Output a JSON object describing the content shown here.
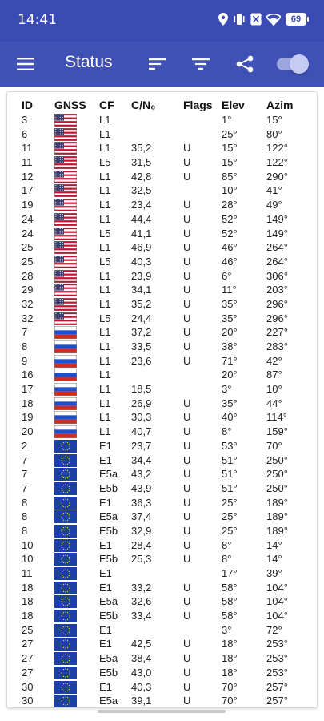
{
  "status_bar": {
    "time": "14:41",
    "battery": "69"
  },
  "app_bar": {
    "title": "Status",
    "toggle_on": true
  },
  "table": {
    "headers": {
      "id": "ID",
      "gnss": "GNSS",
      "cf": "CF",
      "cn0": "C/N₀",
      "flags": "Flags",
      "elev": "Elev",
      "azim": "Azim"
    },
    "rows": [
      {
        "id": "3",
        "gnss": "us",
        "cf": "L1",
        "cn0": "",
        "flags": "",
        "elev": "1°",
        "azim": "15°"
      },
      {
        "id": "6",
        "gnss": "us",
        "cf": "L1",
        "cn0": "",
        "flags": "",
        "elev": "25°",
        "azim": "80°"
      },
      {
        "id": "11",
        "gnss": "us",
        "cf": "L1",
        "cn0": "35,2",
        "flags": "U",
        "elev": "15°",
        "azim": "122°"
      },
      {
        "id": "11",
        "gnss": "us",
        "cf": "L5",
        "cn0": "31,5",
        "flags": "U",
        "elev": "15°",
        "azim": "122°"
      },
      {
        "id": "12",
        "gnss": "us",
        "cf": "L1",
        "cn0": "42,8",
        "flags": "U",
        "elev": "85°",
        "azim": "290°"
      },
      {
        "id": "17",
        "gnss": "us",
        "cf": "L1",
        "cn0": "32,5",
        "flags": "",
        "elev": "10°",
        "azim": "41°"
      },
      {
        "id": "19",
        "gnss": "us",
        "cf": "L1",
        "cn0": "23,4",
        "flags": "U",
        "elev": "28°",
        "azim": "49°"
      },
      {
        "id": "24",
        "gnss": "us",
        "cf": "L1",
        "cn0": "44,4",
        "flags": "U",
        "elev": "52°",
        "azim": "149°"
      },
      {
        "id": "24",
        "gnss": "us",
        "cf": "L5",
        "cn0": "41,1",
        "flags": "U",
        "elev": "52°",
        "azim": "149°"
      },
      {
        "id": "25",
        "gnss": "us",
        "cf": "L1",
        "cn0": "46,9",
        "flags": "U",
        "elev": "46°",
        "azim": "264°"
      },
      {
        "id": "25",
        "gnss": "us",
        "cf": "L5",
        "cn0": "40,3",
        "flags": "U",
        "elev": "46°",
        "azim": "264°"
      },
      {
        "id": "28",
        "gnss": "us",
        "cf": "L1",
        "cn0": "23,9",
        "flags": "U",
        "elev": "6°",
        "azim": "306°"
      },
      {
        "id": "29",
        "gnss": "us",
        "cf": "L1",
        "cn0": "34,1",
        "flags": "U",
        "elev": "11°",
        "azim": "203°"
      },
      {
        "id": "32",
        "gnss": "us",
        "cf": "L1",
        "cn0": "35,2",
        "flags": "U",
        "elev": "35°",
        "azim": "296°"
      },
      {
        "id": "32",
        "gnss": "us",
        "cf": "L5",
        "cn0": "24,4",
        "flags": "U",
        "elev": "35°",
        "azim": "296°"
      },
      {
        "id": "7",
        "gnss": "ru",
        "cf": "L1",
        "cn0": "37,2",
        "flags": "U",
        "elev": "20°",
        "azim": "227°"
      },
      {
        "id": "8",
        "gnss": "ru",
        "cf": "L1",
        "cn0": "33,5",
        "flags": "U",
        "elev": "38°",
        "azim": "283°"
      },
      {
        "id": "9",
        "gnss": "ru",
        "cf": "L1",
        "cn0": "23,6",
        "flags": "U",
        "elev": "71°",
        "azim": "42°"
      },
      {
        "id": "16",
        "gnss": "ru",
        "cf": "L1",
        "cn0": "",
        "flags": "",
        "elev": "20°",
        "azim": "87°"
      },
      {
        "id": "17",
        "gnss": "ru",
        "cf": "L1",
        "cn0": "18,5",
        "flags": "",
        "elev": "3°",
        "azim": "10°"
      },
      {
        "id": "18",
        "gnss": "ru",
        "cf": "L1",
        "cn0": "26,9",
        "flags": "U",
        "elev": "35°",
        "azim": "44°"
      },
      {
        "id": "19",
        "gnss": "ru",
        "cf": "L1",
        "cn0": "30,3",
        "flags": "U",
        "elev": "40°",
        "azim": "114°"
      },
      {
        "id": "20",
        "gnss": "ru",
        "cf": "L1",
        "cn0": "40,7",
        "flags": "U",
        "elev": "8°",
        "azim": "159°"
      },
      {
        "id": "2",
        "gnss": "eu",
        "cf": "E1",
        "cn0": "23,7",
        "flags": "U",
        "elev": "53°",
        "azim": "70°"
      },
      {
        "id": "7",
        "gnss": "eu",
        "cf": "E1",
        "cn0": "34,4",
        "flags": "U",
        "elev": "51°",
        "azim": "250°"
      },
      {
        "id": "7",
        "gnss": "eu",
        "cf": "E5a",
        "cn0": "43,2",
        "flags": "U",
        "elev": "51°",
        "azim": "250°"
      },
      {
        "id": "7",
        "gnss": "eu",
        "cf": "E5b",
        "cn0": "43,9",
        "flags": "U",
        "elev": "51°",
        "azim": "250°"
      },
      {
        "id": "8",
        "gnss": "eu",
        "cf": "E1",
        "cn0": "36,3",
        "flags": "U",
        "elev": "25°",
        "azim": "189°"
      },
      {
        "id": "8",
        "gnss": "eu",
        "cf": "E5a",
        "cn0": "37,4",
        "flags": "U",
        "elev": "25°",
        "azim": "189°"
      },
      {
        "id": "8",
        "gnss": "eu",
        "cf": "E5b",
        "cn0": "32,9",
        "flags": "U",
        "elev": "25°",
        "azim": "189°"
      },
      {
        "id": "10",
        "gnss": "eu",
        "cf": "E1",
        "cn0": "28,4",
        "flags": "U",
        "elev": "8°",
        "azim": "14°"
      },
      {
        "id": "10",
        "gnss": "eu",
        "cf": "E5b",
        "cn0": "25,3",
        "flags": "U",
        "elev": "8°",
        "azim": "14°"
      },
      {
        "id": "11",
        "gnss": "eu",
        "cf": "E1",
        "cn0": "",
        "flags": "",
        "elev": "17°",
        "azim": "39°"
      },
      {
        "id": "18",
        "gnss": "eu",
        "cf": "E1",
        "cn0": "33,2",
        "flags": "U",
        "elev": "58°",
        "azim": "104°"
      },
      {
        "id": "18",
        "gnss": "eu",
        "cf": "E5a",
        "cn0": "32,6",
        "flags": "U",
        "elev": "58°",
        "azim": "104°"
      },
      {
        "id": "18",
        "gnss": "eu",
        "cf": "E5b",
        "cn0": "33,4",
        "flags": "U",
        "elev": "58°",
        "azim": "104°"
      },
      {
        "id": "25",
        "gnss": "eu",
        "cf": "E1",
        "cn0": "",
        "flags": "",
        "elev": "3°",
        "azim": "72°"
      },
      {
        "id": "27",
        "gnss": "eu",
        "cf": "E1",
        "cn0": "42,5",
        "flags": "U",
        "elev": "18°",
        "azim": "253°"
      },
      {
        "id": "27",
        "gnss": "eu",
        "cf": "E5a",
        "cn0": "38,4",
        "flags": "U",
        "elev": "18°",
        "azim": "253°"
      },
      {
        "id": "27",
        "gnss": "eu",
        "cf": "E5b",
        "cn0": "43,0",
        "flags": "U",
        "elev": "18°",
        "azim": "253°"
      },
      {
        "id": "30",
        "gnss": "eu",
        "cf": "E1",
        "cn0": "40,3",
        "flags": "U",
        "elev": "70°",
        "azim": "257°"
      },
      {
        "id": "30",
        "gnss": "eu",
        "cf": "E5a",
        "cn0": "39,1",
        "flags": "U",
        "elev": "70°",
        "azim": "257°"
      }
    ]
  },
  "colors": {
    "status_bar": "#3a4bb3",
    "app_bar": "#3f51b5",
    "toggle_track": "#9ea7e0",
    "toggle_thumb": "#c5cbf2"
  },
  "icons": {
    "menu": "hamburger-icon",
    "sort": "sort-icon",
    "filter": "filter-icon",
    "share": "share-icon",
    "toggle": "toggle-switch"
  }
}
